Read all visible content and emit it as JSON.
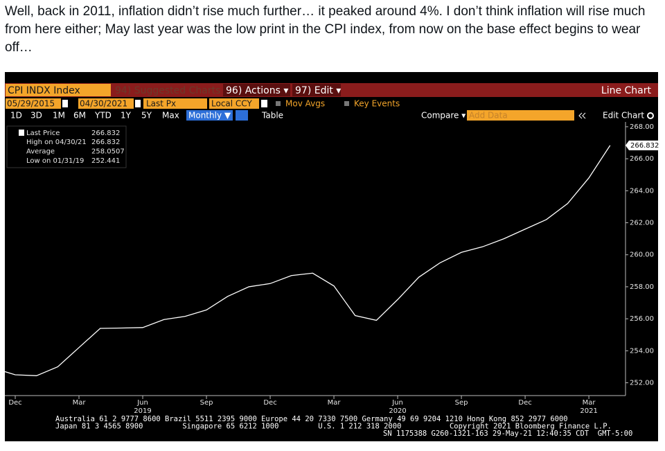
{
  "tweet": {
    "text": "Well, back in 2011, inflation didn’t rise much further… it peaked around 4%. I don’t think inflation will rise much from here either; May last year was the low print in the CPI index, from now on the base effect begins to wear off…"
  },
  "toolbar": {
    "security": "CPI INDX Index",
    "suggested": "94) Suggested Charts",
    "actions": "96) Actions ▾",
    "edit": "97) Edit ▾",
    "chart_type_label": "Line Chart",
    "start_date": "05/29/2015",
    "end_date": "04/30/2021",
    "field": "Last Px",
    "currency": "Local CCY",
    "mov_avgs": "Mov Avgs",
    "key_events": "Key Events",
    "ranges": [
      "1D",
      "3D",
      "1M",
      "6M",
      "YTD",
      "1Y",
      "5Y",
      "Max"
    ],
    "frequency": "Monthly ▼",
    "table": "Table",
    "compare": "Compare ▾",
    "add_data": "Add Data",
    "edit_chart": "Edit Chart"
  },
  "chart_data": {
    "type": "line",
    "categories": [
      null,
      "Dec",
      null,
      null,
      "Mar",
      null,
      null,
      "Jun",
      null,
      null,
      "Sep",
      null,
      null,
      "Dec",
      null,
      null,
      "Mar",
      null,
      null,
      "Jun",
      null,
      null,
      "Sep",
      null,
      null,
      "Dec",
      null,
      null,
      "Mar",
      null
    ],
    "category_years": [
      null,
      null,
      null,
      null,
      null,
      null,
      null,
      "2019",
      null,
      null,
      null,
      null,
      null,
      null,
      null,
      null,
      null,
      null,
      null,
      "2020",
      null,
      null,
      null,
      null,
      null,
      null,
      null,
      null,
      "2021",
      null
    ],
    "series": [
      {
        "name": "Last Price",
        "color": "#ffffff",
        "values": [
          252.9,
          252.5,
          252.441,
          253.0,
          254.2,
          255.4,
          255.42,
          255.45,
          255.95,
          256.15,
          256.55,
          257.4,
          258.0,
          258.2,
          258.7,
          258.85,
          258.05,
          256.2,
          255.9,
          257.2,
          258.6,
          259.5,
          260.15,
          260.5,
          261.0,
          261.6,
          262.2,
          263.2,
          264.8,
          266.832
        ]
      }
    ],
    "stats": [
      {
        "label": "High on 04/30/21",
        "value": 266.832
      },
      {
        "label": "Average",
        "value": 258.0507
      },
      {
        "label": "Low on 01/31/19",
        "value": 252.441
      }
    ],
    "ylim": [
      251.2,
      268.3
    ],
    "yticks": [
      {
        "value": 252,
        "label": "252.00"
      },
      {
        "value": 254,
        "label": "254.00"
      },
      {
        "value": 256,
        "label": "256.00"
      },
      {
        "value": 258,
        "label": "258.00"
      },
      {
        "value": 260,
        "label": "260.00"
      },
      {
        "value": 262,
        "label": "262.00"
      },
      {
        "value": 264,
        "label": "264.00"
      },
      {
        "value": 266,
        "label": "266.00"
      },
      {
        "value": 268,
        "label": "268.00"
      }
    ]
  },
  "footer": {
    "lines": [
      "Australia 61 2 9777 8600 Brazil 5511 2395 9000 Europe 44 20 7330 7500 Germany 49 69 9204 1210 Hong Kong 852 2977 6000",
      "Japan 81 3 4565 8900         Singapore 65 6212 1000         U.S. 1 212 318 2000           Copyright 2021 Bloomberg Finance L.P.",
      "SN 1175388 G260-1321-163 29-May-21 12:40:35 CDT  GMT-5:00"
    ]
  }
}
